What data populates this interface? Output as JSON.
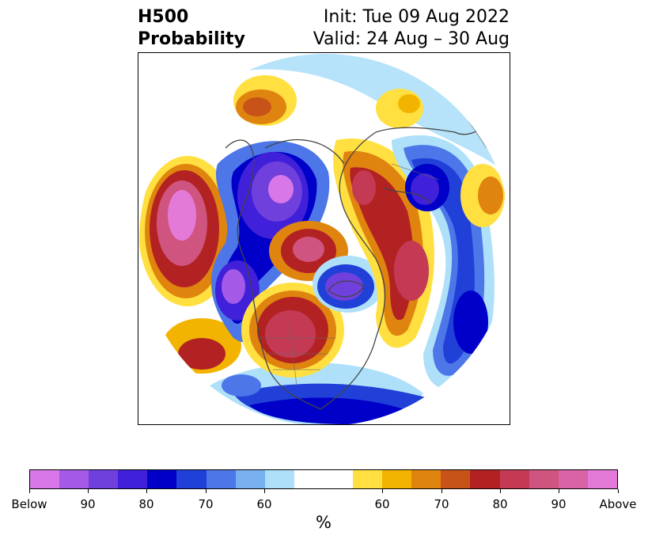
{
  "title": {
    "left_line1": "H500",
    "left_line2": "Probability",
    "right_line1": "Init: Tue 09 Aug 2022",
    "right_line2": "Valid: 24 Aug – 30 Aug"
  },
  "colorbar": {
    "unit_label": "%",
    "colors": [
      "#d877e8",
      "#a45ae6",
      "#7040dc",
      "#4020d8",
      "#0000c8",
      "#2040d8",
      "#4d76e8",
      "#78b0f0",
      "#aee0fa",
      "#ffffff",
      "#ffe040",
      "#f2b400",
      "#e08410",
      "#c75318",
      "#b32222",
      "#c43a54",
      "#cf5480",
      "#da62a6",
      "#e47ad8"
    ],
    "tick_labels": [
      "Below",
      "90",
      "80",
      "70",
      "60",
      "60",
      "70",
      "80",
      "90",
      "Above"
    ]
  },
  "map": {
    "projection": "north-polar-stereographic",
    "anomaly_regions": [
      {
        "name": "western-pacific-above",
        "category": "above",
        "peak": "Above"
      },
      {
        "name": "alaska-canada-below",
        "category": "below",
        "peak": "Below"
      },
      {
        "name": "central-north-america-above",
        "category": "above",
        "peak": "90"
      },
      {
        "name": "arctic-below",
        "category": "below",
        "peak": "90"
      },
      {
        "name": "siberia-above",
        "category": "above",
        "peak": "90"
      },
      {
        "name": "northern-europe-below",
        "category": "below",
        "peak": "90"
      },
      {
        "name": "north-atlantic-below",
        "category": "below",
        "peak": "80"
      },
      {
        "name": "eastern-europe-above",
        "category": "above",
        "peak": "90"
      },
      {
        "name": "east-asia-above",
        "category": "above",
        "peak": "70"
      }
    ]
  }
}
